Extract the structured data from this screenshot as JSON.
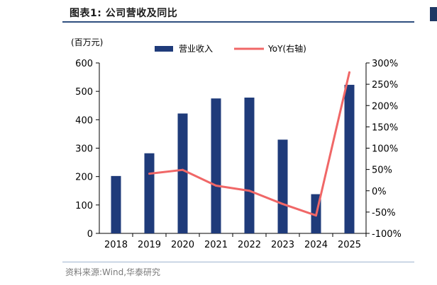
{
  "title": "图表1:  公司营收及同比",
  "source": "资料来源:Wind,华泰研究",
  "chart_data": {
    "type": "bar",
    "unit_label": "(百万元)",
    "categories": [
      "2018",
      "2019",
      "2020",
      "2021",
      "2022",
      "2023",
      "2024",
      "2025"
    ],
    "series": [
      {
        "name": "营业收入",
        "type": "bar",
        "axis": "left",
        "color": "#1f3b7a",
        "values": [
          202,
          282,
          422,
          475,
          478,
          330,
          138,
          523
        ]
      },
      {
        "name": "YoY(右轴)",
        "type": "line",
        "axis": "right",
        "color": "#f06767",
        "values": [
          null,
          40,
          49,
          12,
          0,
          -31,
          -58,
          278
        ]
      }
    ],
    "left_axis": {
      "min": 0,
      "max": 600,
      "ticks": [
        "0",
        "100",
        "200",
        "300",
        "400",
        "500",
        "600"
      ]
    },
    "right_axis": {
      "min": -100,
      "max": 300,
      "ticks": [
        "-100%",
        "-50%",
        "0%",
        "50%",
        "100%",
        "150%",
        "200%",
        "250%",
        "300%"
      ]
    },
    "legend_position": "top-center",
    "grid": false
  }
}
